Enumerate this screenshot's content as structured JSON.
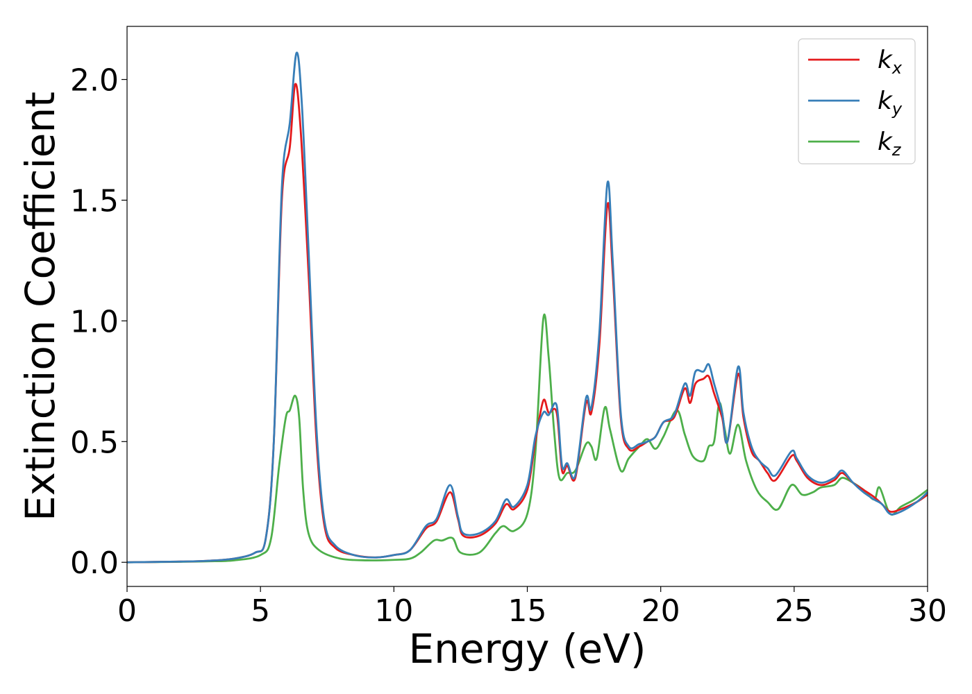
{
  "chart_data": {
    "type": "line",
    "xlabel": "Energy (eV)",
    "ylabel": "Extinction Coefficient",
    "xlim": [
      0,
      30
    ],
    "ylim": [
      -0.1,
      2.22
    ],
    "x_ticks": [
      "0",
      "5",
      "10",
      "15",
      "20",
      "25",
      "30"
    ],
    "y_ticks": [
      "0.0",
      "0.5",
      "1.0",
      "1.5",
      "2.0"
    ],
    "grid": false,
    "legend_position": "top-right",
    "series": [
      {
        "name": "kx",
        "label_base": "k",
        "label_sub": "x",
        "color": "#e41a1c",
        "points": [
          [
            0,
            0
          ],
          [
            2,
            0.003
          ],
          [
            3,
            0.006
          ],
          [
            4,
            0.015
          ],
          [
            4.8,
            0.04
          ],
          [
            5.2,
            0.1
          ],
          [
            5.5,
            0.5
          ],
          [
            5.8,
            1.5
          ],
          [
            6.1,
            1.72
          ],
          [
            6.3,
            1.98
          ],
          [
            6.5,
            1.8
          ],
          [
            6.8,
            1.2
          ],
          [
            7.1,
            0.5
          ],
          [
            7.4,
            0.15
          ],
          [
            7.8,
            0.06
          ],
          [
            8.5,
            0.03
          ],
          [
            9.3,
            0.02
          ],
          [
            10,
            0.03
          ],
          [
            10.6,
            0.05
          ],
          [
            11.2,
            0.14
          ],
          [
            11.6,
            0.17
          ],
          [
            12.1,
            0.29
          ],
          [
            12.4,
            0.18
          ],
          [
            12.6,
            0.11
          ],
          [
            13.2,
            0.11
          ],
          [
            13.8,
            0.16
          ],
          [
            14.2,
            0.24
          ],
          [
            14.5,
            0.22
          ],
          [
            15,
            0.3
          ],
          [
            15.3,
            0.5
          ],
          [
            15.6,
            0.67
          ],
          [
            15.8,
            0.62
          ],
          [
            16.1,
            0.62
          ],
          [
            16.3,
            0.38
          ],
          [
            16.5,
            0.4
          ],
          [
            16.8,
            0.35
          ],
          [
            17.2,
            0.66
          ],
          [
            17.4,
            0.62
          ],
          [
            17.7,
            0.9
          ],
          [
            18,
            1.48
          ],
          [
            18.2,
            1.2
          ],
          [
            18.5,
            0.6
          ],
          [
            18.8,
            0.47
          ],
          [
            19.2,
            0.48
          ],
          [
            19.5,
            0.5
          ],
          [
            19.8,
            0.52
          ],
          [
            20.1,
            0.58
          ],
          [
            20.5,
            0.6
          ],
          [
            20.9,
            0.72
          ],
          [
            21.1,
            0.66
          ],
          [
            21.3,
            0.74
          ],
          [
            21.6,
            0.76
          ],
          [
            21.8,
            0.77
          ],
          [
            22,
            0.7
          ],
          [
            22.3,
            0.6
          ],
          [
            22.5,
            0.5
          ],
          [
            22.9,
            0.78
          ],
          [
            23.1,
            0.6
          ],
          [
            23.4,
            0.46
          ],
          [
            23.7,
            0.42
          ],
          [
            24,
            0.37
          ],
          [
            24.3,
            0.34
          ],
          [
            24.9,
            0.44
          ],
          [
            25.1,
            0.42
          ],
          [
            25.5,
            0.35
          ],
          [
            26,
            0.32
          ],
          [
            26.5,
            0.34
          ],
          [
            26.8,
            0.37
          ],
          [
            27.2,
            0.33
          ],
          [
            27.6,
            0.3
          ],
          [
            28,
            0.27
          ],
          [
            28.3,
            0.24
          ],
          [
            28.6,
            0.21
          ],
          [
            29,
            0.22
          ],
          [
            29.6,
            0.25
          ],
          [
            30,
            0.28
          ]
        ]
      },
      {
        "name": "ky",
        "label_base": "k",
        "label_sub": "y",
        "color": "#377eb8",
        "points": [
          [
            0,
            0
          ],
          [
            2,
            0.003
          ],
          [
            3,
            0.006
          ],
          [
            4,
            0.015
          ],
          [
            4.8,
            0.04
          ],
          [
            5.2,
            0.1
          ],
          [
            5.5,
            0.5
          ],
          [
            5.8,
            1.55
          ],
          [
            6.1,
            1.82
          ],
          [
            6.35,
            2.11
          ],
          [
            6.55,
            1.9
          ],
          [
            6.8,
            1.3
          ],
          [
            7.1,
            0.55
          ],
          [
            7.4,
            0.17
          ],
          [
            7.8,
            0.07
          ],
          [
            8.5,
            0.03
          ],
          [
            9.3,
            0.02
          ],
          [
            10,
            0.03
          ],
          [
            10.6,
            0.05
          ],
          [
            11.2,
            0.15
          ],
          [
            11.6,
            0.18
          ],
          [
            12.1,
            0.32
          ],
          [
            12.4,
            0.19
          ],
          [
            12.6,
            0.12
          ],
          [
            13.2,
            0.12
          ],
          [
            13.8,
            0.17
          ],
          [
            14.2,
            0.26
          ],
          [
            14.5,
            0.23
          ],
          [
            15,
            0.32
          ],
          [
            15.3,
            0.52
          ],
          [
            15.6,
            0.62
          ],
          [
            15.8,
            0.61
          ],
          [
            16.1,
            0.65
          ],
          [
            16.3,
            0.4
          ],
          [
            16.5,
            0.41
          ],
          [
            16.8,
            0.36
          ],
          [
            17.2,
            0.68
          ],
          [
            17.4,
            0.64
          ],
          [
            17.7,
            0.95
          ],
          [
            18,
            1.57
          ],
          [
            18.2,
            1.25
          ],
          [
            18.5,
            0.62
          ],
          [
            18.8,
            0.48
          ],
          [
            19.2,
            0.49
          ],
          [
            19.5,
            0.5
          ],
          [
            19.8,
            0.52
          ],
          [
            20.1,
            0.58
          ],
          [
            20.5,
            0.61
          ],
          [
            20.9,
            0.74
          ],
          [
            21.1,
            0.69
          ],
          [
            21.3,
            0.79
          ],
          [
            21.6,
            0.79
          ],
          [
            21.8,
            0.82
          ],
          [
            22,
            0.74
          ],
          [
            22.3,
            0.62
          ],
          [
            22.5,
            0.5
          ],
          [
            22.9,
            0.81
          ],
          [
            23.1,
            0.62
          ],
          [
            23.4,
            0.48
          ],
          [
            23.7,
            0.42
          ],
          [
            24,
            0.39
          ],
          [
            24.3,
            0.36
          ],
          [
            24.9,
            0.46
          ],
          [
            25.1,
            0.43
          ],
          [
            25.5,
            0.36
          ],
          [
            26,
            0.33
          ],
          [
            26.5,
            0.35
          ],
          [
            26.8,
            0.38
          ],
          [
            27.2,
            0.33
          ],
          [
            27.6,
            0.29
          ],
          [
            28,
            0.26
          ],
          [
            28.3,
            0.24
          ],
          [
            28.6,
            0.2
          ],
          [
            29,
            0.21
          ],
          [
            29.6,
            0.25
          ],
          [
            30,
            0.29
          ]
        ]
      },
      {
        "name": "kz",
        "label_base": "k",
        "label_sub": "z",
        "color": "#4daf4a",
        "points": [
          [
            0,
            0
          ],
          [
            2,
            0.002
          ],
          [
            3,
            0.004
          ],
          [
            4,
            0.008
          ],
          [
            5,
            0.03
          ],
          [
            5.4,
            0.1
          ],
          [
            5.7,
            0.4
          ],
          [
            5.95,
            0.6
          ],
          [
            6.1,
            0.63
          ],
          [
            6.3,
            0.69
          ],
          [
            6.45,
            0.6
          ],
          [
            6.6,
            0.3
          ],
          [
            6.8,
            0.12
          ],
          [
            7.2,
            0.05
          ],
          [
            8,
            0.015
          ],
          [
            9,
            0.008
          ],
          [
            10,
            0.01
          ],
          [
            10.6,
            0.015
          ],
          [
            11,
            0.04
          ],
          [
            11.5,
            0.09
          ],
          [
            11.8,
            0.09
          ],
          [
            12.2,
            0.1
          ],
          [
            12.5,
            0.04
          ],
          [
            13.2,
            0.04
          ],
          [
            13.8,
            0.12
          ],
          [
            14.1,
            0.15
          ],
          [
            14.5,
            0.13
          ],
          [
            15,
            0.2
          ],
          [
            15.3,
            0.45
          ],
          [
            15.6,
            1.01
          ],
          [
            15.8,
            0.85
          ],
          [
            16,
            0.55
          ],
          [
            16.2,
            0.35
          ],
          [
            16.5,
            0.37
          ],
          [
            16.8,
            0.38
          ],
          [
            17.2,
            0.49
          ],
          [
            17.4,
            0.48
          ],
          [
            17.6,
            0.43
          ],
          [
            17.9,
            0.64
          ],
          [
            18.1,
            0.55
          ],
          [
            18.5,
            0.38
          ],
          [
            18.8,
            0.43
          ],
          [
            19.2,
            0.48
          ],
          [
            19.5,
            0.51
          ],
          [
            19.8,
            0.47
          ],
          [
            20.1,
            0.52
          ],
          [
            20.6,
            0.63
          ],
          [
            20.9,
            0.53
          ],
          [
            21.2,
            0.44
          ],
          [
            21.6,
            0.42
          ],
          [
            21.8,
            0.48
          ],
          [
            22,
            0.5
          ],
          [
            22.2,
            0.66
          ],
          [
            22.4,
            0.55
          ],
          [
            22.6,
            0.45
          ],
          [
            22.9,
            0.57
          ],
          [
            23.2,
            0.42
          ],
          [
            23.6,
            0.3
          ],
          [
            24,
            0.25
          ],
          [
            24.4,
            0.22
          ],
          [
            24.9,
            0.32
          ],
          [
            25.3,
            0.28
          ],
          [
            25.7,
            0.29
          ],
          [
            26,
            0.31
          ],
          [
            26.5,
            0.32
          ],
          [
            26.8,
            0.35
          ],
          [
            27.2,
            0.33
          ],
          [
            27.6,
            0.3
          ],
          [
            28,
            0.26
          ],
          [
            28.2,
            0.31
          ],
          [
            28.6,
            0.2
          ],
          [
            29,
            0.23
          ],
          [
            29.5,
            0.26
          ],
          [
            30,
            0.3
          ]
        ]
      }
    ]
  }
}
